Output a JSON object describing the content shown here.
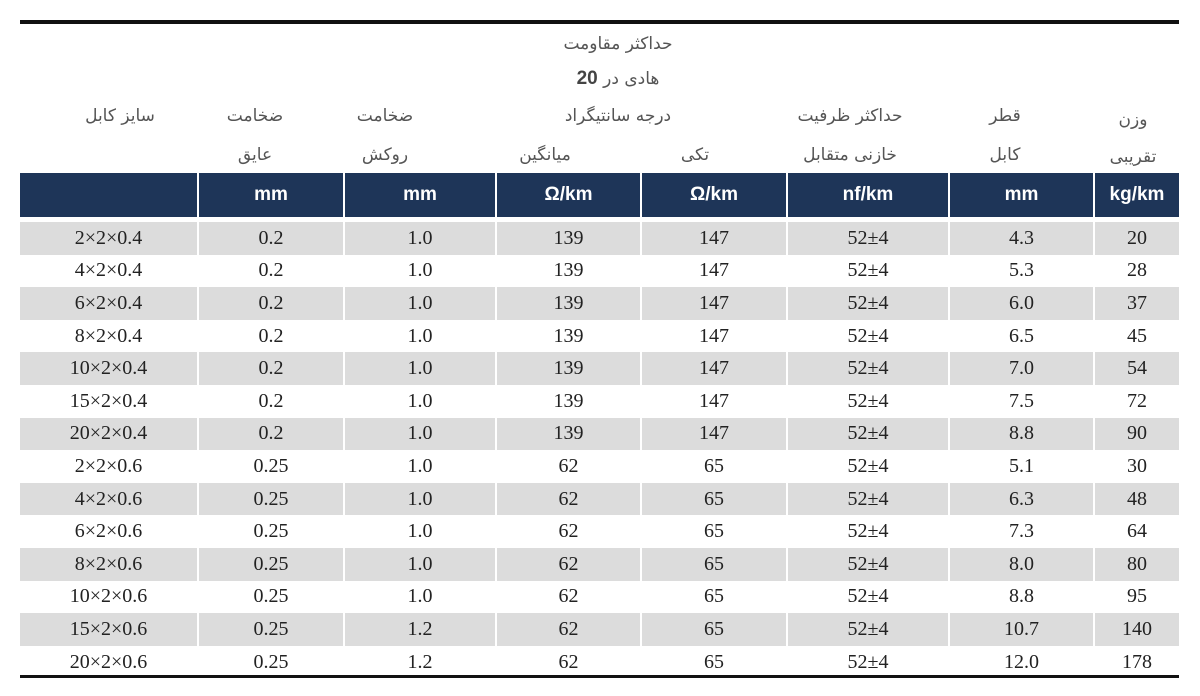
{
  "header": {
    "size": "سایز کابل",
    "insulation_l1": "ضخامت",
    "insulation_l2": "عایق",
    "sheath_l1": "ضخامت",
    "sheath_l2": "روکش",
    "resistance_l1": "حداکثر مقاومت",
    "resistance_l2_text": "هادی در",
    "resistance_l2_num": "20",
    "resistance_l3": "درجه سانتیگراد",
    "avg": "میانگین",
    "single": "تکی",
    "capacitance_l1": "حداکثر ظرفیت",
    "capacitance_l2": "خازنی متقابل",
    "diameter_l1": "قطر",
    "diameter_l2": "کابل",
    "weight_l1": "وزن",
    "weight_l2": "تقریبی"
  },
  "units": [
    "",
    "mm",
    "mm",
    "Ω/km",
    "Ω/km",
    "nf/km",
    "mm",
    "kg/km"
  ],
  "rows": [
    [
      "2×2×0.4",
      "0.2",
      "1.0",
      "139",
      "147",
      "52±4",
      "4.3",
      "20"
    ],
    [
      "4×2×0.4",
      "0.2",
      "1.0",
      "139",
      "147",
      "52±4",
      "5.3",
      "28"
    ],
    [
      "6×2×0.4",
      "0.2",
      "1.0",
      "139",
      "147",
      "52±4",
      "6.0",
      "37"
    ],
    [
      "8×2×0.4",
      "0.2",
      "1.0",
      "139",
      "147",
      "52±4",
      "6.5",
      "45"
    ],
    [
      "10×2×0.4",
      "0.2",
      "1.0",
      "139",
      "147",
      "52±4",
      "7.0",
      "54"
    ],
    [
      "15×2×0.4",
      "0.2",
      "1.0",
      "139",
      "147",
      "52±4",
      "7.5",
      "72"
    ],
    [
      "20×2×0.4",
      "0.2",
      "1.0",
      "139",
      "147",
      "52±4",
      "8.8",
      "90"
    ],
    [
      "2×2×0.6",
      "0.25",
      "1.0",
      "62",
      "65",
      "52±4",
      "5.1",
      "30"
    ],
    [
      "4×2×0.6",
      "0.25",
      "1.0",
      "62",
      "65",
      "52±4",
      "6.3",
      "48"
    ],
    [
      "6×2×0.6",
      "0.25",
      "1.0",
      "62",
      "65",
      "52±4",
      "7.3",
      "64"
    ],
    [
      "8×2×0.6",
      "0.25",
      "1.0",
      "62",
      "65",
      "52±4",
      "8.0",
      "80"
    ],
    [
      "10×2×0.6",
      "0.25",
      "1.0",
      "62",
      "65",
      "52±4",
      "8.8",
      "95"
    ],
    [
      "15×2×0.6",
      "0.25",
      "1.2",
      "62",
      "65",
      "52±4",
      "10.7",
      "140"
    ],
    [
      "20×2×0.6",
      "0.25",
      "1.2",
      "62",
      "65",
      "52±4",
      "12.0",
      "178"
    ]
  ]
}
